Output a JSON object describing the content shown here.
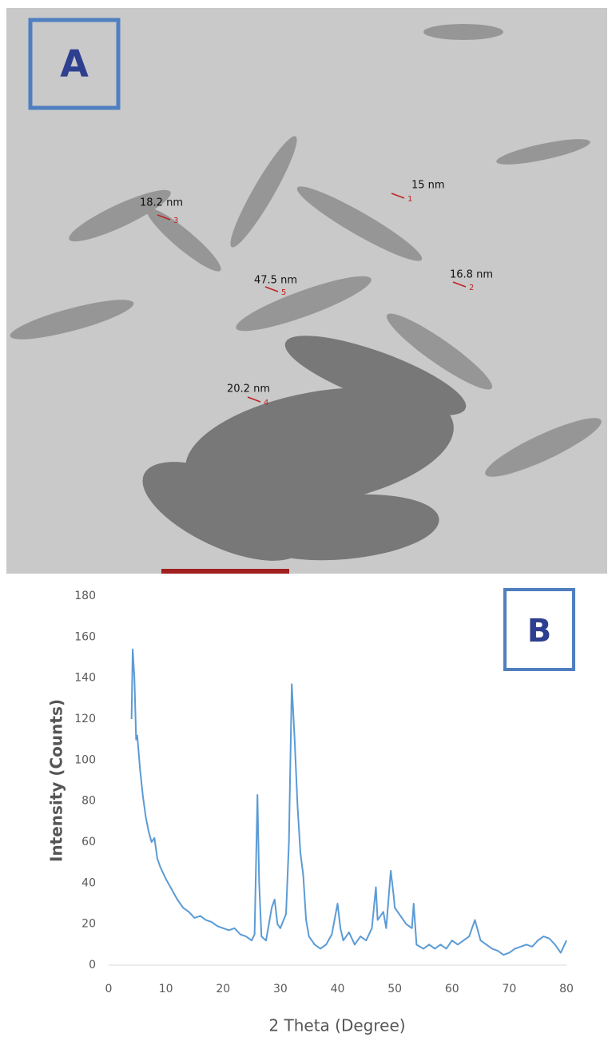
{
  "panel_a": {
    "label": "A",
    "annotations": [
      {
        "text": "15 nm",
        "marker": "1"
      },
      {
        "text": "16.8 nm",
        "marker": "2"
      },
      {
        "text": "18.2 nm",
        "marker": "3"
      },
      {
        "text": "20.2 nm",
        "marker": "4"
      },
      {
        "text": "47.5 nm",
        "marker": "5"
      }
    ]
  },
  "chart_data": {
    "type": "line",
    "panel_label": "B",
    "xlabel": "2 Theta (Degree)",
    "ylabel": "Intensity (Counts)",
    "xlim": [
      0,
      80
    ],
    "ylim": [
      0,
      180
    ],
    "xticks": [
      0,
      10,
      20,
      30,
      40,
      50,
      60,
      70,
      80
    ],
    "yticks": [
      0,
      20,
      40,
      60,
      80,
      100,
      120,
      140,
      160,
      180
    ],
    "color": "#5b9bd5",
    "x": [
      4,
      4.2,
      4.5,
      4.8,
      5,
      5.5,
      6,
      6.5,
      7,
      7.5,
      8,
      8.5,
      9,
      10,
      11,
      12,
      13,
      14,
      15,
      16,
      17,
      18,
      19,
      20,
      21,
      22,
      23,
      24,
      25,
      25.5,
      26,
      26.3,
      26.7,
      27.5,
      28,
      28.5,
      29,
      29.5,
      30,
      31,
      31.5,
      32,
      32.5,
      33,
      33.5,
      34,
      34.5,
      35,
      36,
      37,
      38,
      39,
      40,
      40.5,
      41,
      42,
      43,
      44,
      45,
      46,
      46.7,
      47,
      48,
      48.5,
      49.3,
      49.8,
      50,
      51,
      52,
      53,
      53.3,
      53.8,
      55,
      56,
      57,
      58,
      59,
      60,
      61,
      62,
      63,
      64,
      65,
      66,
      67,
      68,
      69,
      70,
      71,
      72,
      73,
      74,
      75,
      76,
      77,
      78,
      79,
      80
    ],
    "values": [
      120,
      154,
      140,
      110,
      112,
      95,
      82,
      72,
      65,
      60,
      62,
      52,
      48,
      42,
      37,
      32,
      28,
      26,
      23,
      24,
      22,
      21,
      19,
      18,
      17,
      18,
      15,
      14,
      12,
      15,
      83,
      40,
      14,
      12,
      20,
      28,
      32,
      20,
      18,
      25,
      60,
      137,
      110,
      78,
      55,
      44,
      22,
      14,
      10,
      8,
      10,
      15,
      30,
      18,
      12,
      16,
      10,
      14,
      12,
      18,
      38,
      22,
      26,
      18,
      46,
      34,
      28,
      24,
      20,
      18,
      30,
      10,
      8,
      10,
      8,
      10,
      8,
      12,
      10,
      12,
      14,
      22,
      12,
      10,
      8,
      7,
      5,
      6,
      8,
      9,
      10,
      9,
      12,
      14,
      13,
      10,
      6,
      12
    ]
  }
}
